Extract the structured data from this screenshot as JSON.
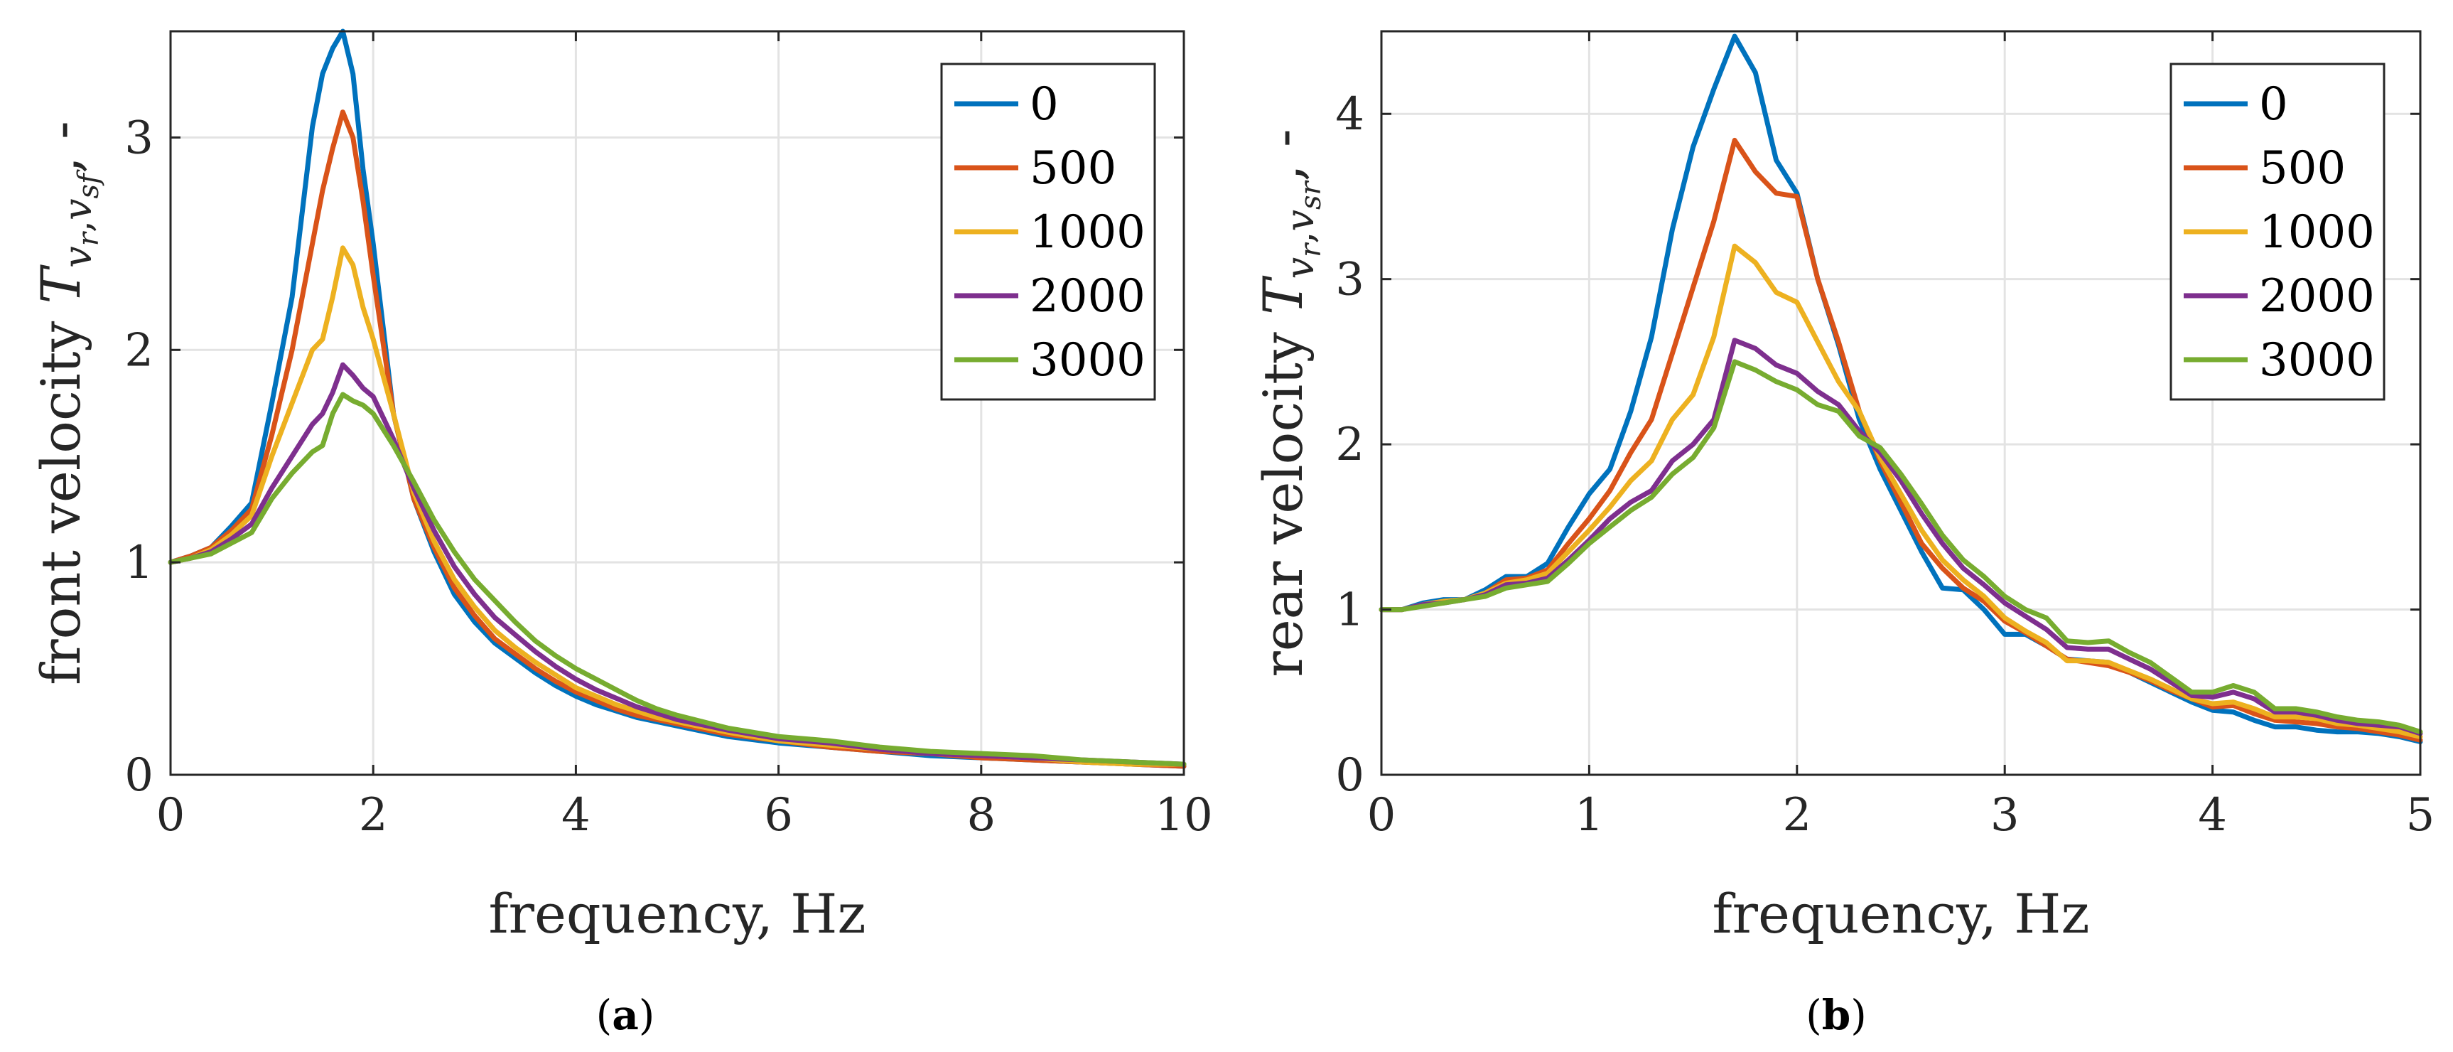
{
  "chart_data": [
    {
      "type": "line",
      "id": "a",
      "caption_paren_open": "(",
      "caption_letter": "a",
      "caption_paren_close": ")",
      "xlabel": "frequency, Hz",
      "ylabel_prefix": "front velocity ",
      "ylabel_T": "T",
      "ylabel_sub": "v",
      "ylabel_sub_r": "r",
      "ylabel_sub_sep": ",",
      "ylabel_sub2": "v",
      "ylabel_sub2_sub": "sf",
      "ylabel_suffix": ", -",
      "xlim": [
        0,
        10
      ],
      "ylim": [
        0,
        3.5
      ],
      "xticks": [
        "0",
        "2",
        "4",
        "6",
        "8",
        "10"
      ],
      "yticks": [
        "0",
        "1",
        "2",
        "3"
      ],
      "xtick_values": [
        0,
        2,
        4,
        6,
        8,
        10
      ],
      "ytick_values": [
        0,
        1,
        2,
        3
      ],
      "legend_position": "top-right",
      "x": [
        0,
        0.2,
        0.4,
        0.6,
        0.8,
        1.0,
        1.2,
        1.4,
        1.5,
        1.6,
        1.7,
        1.8,
        1.9,
        2.0,
        2.2,
        2.4,
        2.6,
        2.8,
        3.0,
        3.2,
        3.4,
        3.6,
        3.8,
        4.0,
        4.2,
        4.4,
        4.6,
        4.8,
        5.0,
        5.5,
        6.0,
        6.5,
        7.0,
        7.5,
        8.0,
        8.5,
        9.0,
        9.5,
        10.0
      ],
      "series": [
        {
          "name": "0",
          "color": "#0072bd",
          "values": [
            1.0,
            1.03,
            1.07,
            1.17,
            1.28,
            1.75,
            2.25,
            3.05,
            3.3,
            3.42,
            3.5,
            3.3,
            2.85,
            2.5,
            1.7,
            1.3,
            1.05,
            0.85,
            0.72,
            0.62,
            0.55,
            0.48,
            0.42,
            0.37,
            0.33,
            0.3,
            0.27,
            0.25,
            0.23,
            0.18,
            0.15,
            0.13,
            0.11,
            0.09,
            0.08,
            0.07,
            0.06,
            0.05,
            0.04
          ]
        },
        {
          "name": "500",
          "color": "#d95319",
          "values": [
            1.0,
            1.03,
            1.07,
            1.15,
            1.25,
            1.6,
            2.0,
            2.5,
            2.75,
            2.95,
            3.12,
            3.0,
            2.7,
            2.35,
            1.7,
            1.3,
            1.07,
            0.88,
            0.75,
            0.64,
            0.57,
            0.5,
            0.44,
            0.39,
            0.35,
            0.31,
            0.28,
            0.26,
            0.24,
            0.19,
            0.16,
            0.13,
            0.11,
            0.1,
            0.08,
            0.07,
            0.06,
            0.05,
            0.04
          ]
        },
        {
          "name": "1000",
          "color": "#edb120",
          "values": [
            1.0,
            1.02,
            1.06,
            1.13,
            1.22,
            1.5,
            1.75,
            2.0,
            2.05,
            2.25,
            2.48,
            2.4,
            2.2,
            2.05,
            1.7,
            1.33,
            1.1,
            0.92,
            0.79,
            0.68,
            0.6,
            0.53,
            0.47,
            0.41,
            0.37,
            0.33,
            0.3,
            0.27,
            0.25,
            0.2,
            0.16,
            0.14,
            0.12,
            0.1,
            0.09,
            0.08,
            0.06,
            0.05,
            0.05
          ]
        },
        {
          "name": "2000",
          "color": "#7e2f8e",
          "values": [
            1.0,
            1.02,
            1.05,
            1.11,
            1.18,
            1.35,
            1.5,
            1.65,
            1.7,
            1.8,
            1.93,
            1.88,
            1.82,
            1.78,
            1.58,
            1.35,
            1.15,
            0.98,
            0.85,
            0.74,
            0.66,
            0.58,
            0.51,
            0.45,
            0.4,
            0.36,
            0.32,
            0.29,
            0.26,
            0.21,
            0.17,
            0.15,
            0.12,
            0.1,
            0.09,
            0.08,
            0.07,
            0.06,
            0.05
          ]
        },
        {
          "name": "3000",
          "color": "#77ac30",
          "values": [
            1.0,
            1.02,
            1.04,
            1.09,
            1.14,
            1.3,
            1.42,
            1.52,
            1.55,
            1.7,
            1.79,
            1.76,
            1.74,
            1.7,
            1.55,
            1.38,
            1.2,
            1.05,
            0.92,
            0.82,
            0.72,
            0.63,
            0.56,
            0.5,
            0.45,
            0.4,
            0.35,
            0.31,
            0.28,
            0.22,
            0.18,
            0.16,
            0.13,
            0.11,
            0.1,
            0.09,
            0.07,
            0.06,
            0.05
          ]
        }
      ]
    },
    {
      "type": "line",
      "id": "b",
      "caption_paren_open": "(",
      "caption_letter": "b",
      "caption_paren_close": ")",
      "xlabel": "frequency, Hz",
      "ylabel_prefix": "rear velocity ",
      "ylabel_T": "T",
      "ylabel_sub": "v",
      "ylabel_sub_r": "r",
      "ylabel_sub_sep": ",",
      "ylabel_sub2": "v",
      "ylabel_sub2_sub": "sr",
      "ylabel_suffix": ", -",
      "xlim": [
        0,
        5
      ],
      "ylim": [
        0,
        4.5
      ],
      "xticks": [
        "0",
        "1",
        "2",
        "3",
        "4",
        "5"
      ],
      "yticks": [
        "0",
        "1",
        "2",
        "3",
        "4"
      ],
      "xtick_values": [
        0,
        1,
        2,
        3,
        4,
        5
      ],
      "ytick_values": [
        0,
        1,
        2,
        3,
        4
      ],
      "legend_position": "top-right",
      "x": [
        0,
        0.1,
        0.2,
        0.3,
        0.4,
        0.5,
        0.6,
        0.7,
        0.8,
        0.9,
        1.0,
        1.1,
        1.2,
        1.3,
        1.4,
        1.5,
        1.6,
        1.7,
        1.8,
        1.9,
        2.0,
        2.1,
        2.2,
        2.3,
        2.4,
        2.5,
        2.6,
        2.7,
        2.8,
        2.9,
        3.0,
        3.1,
        3.2,
        3.3,
        3.4,
        3.5,
        3.6,
        3.7,
        3.8,
        3.9,
        4.0,
        4.1,
        4.2,
        4.3,
        4.4,
        4.5,
        4.6,
        4.7,
        4.8,
        4.9,
        5.0
      ],
      "series": [
        {
          "name": "0",
          "color": "#0072bd",
          "values": [
            1.0,
            1.0,
            1.04,
            1.06,
            1.06,
            1.12,
            1.2,
            1.2,
            1.28,
            1.5,
            1.7,
            1.85,
            2.2,
            2.65,
            3.3,
            3.8,
            4.15,
            4.47,
            4.25,
            3.72,
            3.52,
            3.0,
            2.6,
            2.15,
            1.85,
            1.6,
            1.35,
            1.13,
            1.12,
            1.0,
            0.85,
            0.85,
            0.78,
            0.7,
            0.69,
            0.68,
            0.62,
            0.56,
            0.5,
            0.44,
            0.39,
            0.38,
            0.33,
            0.29,
            0.29,
            0.27,
            0.26,
            0.26,
            0.25,
            0.23,
            0.2
          ]
        },
        {
          "name": "500",
          "color": "#d95319",
          "values": [
            1.0,
            1.0,
            1.03,
            1.05,
            1.06,
            1.1,
            1.18,
            1.19,
            1.24,
            1.4,
            1.55,
            1.72,
            1.95,
            2.15,
            2.55,
            2.95,
            3.35,
            3.84,
            3.65,
            3.52,
            3.5,
            3.0,
            2.62,
            2.2,
            1.9,
            1.65,
            1.4,
            1.25,
            1.13,
            1.05,
            0.93,
            0.86,
            0.78,
            0.7,
            0.68,
            0.66,
            0.62,
            0.57,
            0.51,
            0.46,
            0.41,
            0.42,
            0.37,
            0.33,
            0.32,
            0.31,
            0.29,
            0.28,
            0.26,
            0.24,
            0.21
          ]
        },
        {
          "name": "1000",
          "color": "#edb120",
          "values": [
            1.0,
            1.0,
            1.03,
            1.05,
            1.06,
            1.1,
            1.16,
            1.18,
            1.22,
            1.35,
            1.48,
            1.62,
            1.78,
            1.9,
            2.15,
            2.3,
            2.65,
            3.2,
            3.1,
            2.92,
            2.86,
            2.62,
            2.38,
            2.2,
            1.92,
            1.7,
            1.48,
            1.3,
            1.18,
            1.08,
            0.95,
            0.87,
            0.8,
            0.69,
            0.69,
            0.68,
            0.63,
            0.58,
            0.52,
            0.46,
            0.43,
            0.44,
            0.4,
            0.35,
            0.35,
            0.34,
            0.31,
            0.3,
            0.28,
            0.26,
            0.23
          ]
        },
        {
          "name": "2000",
          "color": "#7e2f8e",
          "values": [
            1.0,
            1.0,
            1.03,
            1.04,
            1.06,
            1.09,
            1.15,
            1.16,
            1.19,
            1.3,
            1.42,
            1.55,
            1.65,
            1.72,
            1.9,
            2.0,
            2.15,
            2.63,
            2.58,
            2.48,
            2.43,
            2.32,
            2.24,
            2.08,
            1.95,
            1.78,
            1.58,
            1.4,
            1.25,
            1.15,
            1.04,
            0.96,
            0.88,
            0.77,
            0.76,
            0.76,
            0.7,
            0.64,
            0.56,
            0.48,
            0.47,
            0.5,
            0.46,
            0.38,
            0.38,
            0.36,
            0.33,
            0.31,
            0.3,
            0.29,
            0.25
          ]
        },
        {
          "name": "3000",
          "color": "#77ac30",
          "values": [
            1.0,
            1.0,
            1.02,
            1.04,
            1.06,
            1.08,
            1.13,
            1.15,
            1.17,
            1.28,
            1.4,
            1.5,
            1.6,
            1.68,
            1.82,
            1.92,
            2.1,
            2.5,
            2.45,
            2.38,
            2.33,
            2.24,
            2.2,
            2.05,
            1.98,
            1.82,
            1.64,
            1.45,
            1.3,
            1.2,
            1.08,
            1.0,
            0.95,
            0.81,
            0.8,
            0.81,
            0.74,
            0.68,
            0.59,
            0.5,
            0.5,
            0.54,
            0.5,
            0.4,
            0.4,
            0.38,
            0.35,
            0.33,
            0.32,
            0.3,
            0.26
          ]
        }
      ]
    }
  ]
}
